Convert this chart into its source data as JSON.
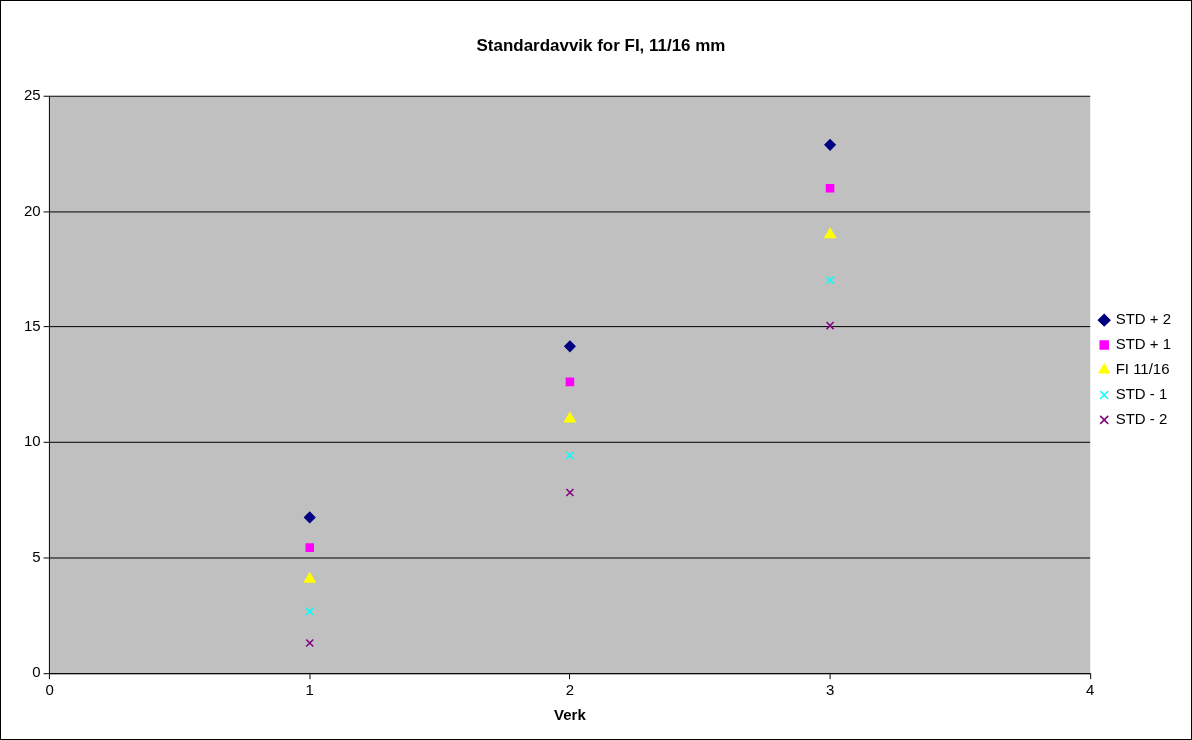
{
  "chart_data": {
    "type": "scatter",
    "title": "Standardavvik for FI, 11/16 mm",
    "xlabel": "Verk",
    "x": [
      1,
      2,
      3
    ],
    "series": [
      {
        "name": "STD + 2",
        "color": "#000080",
        "marker": "diamond",
        "values": [
          6.75,
          14.16,
          22.89
        ]
      },
      {
        "name": "STD + 1",
        "color": "#ff00ff",
        "marker": "square",
        "values": [
          5.44,
          12.62,
          21.01
        ]
      },
      {
        "name": "FI 11/16",
        "color": "#ffff00",
        "marker": "triangle",
        "values": [
          4.08,
          11.02,
          19.0
        ]
      },
      {
        "name": "STD - 1",
        "color": "#00ffff",
        "marker": "cross",
        "values": [
          2.67,
          9.43,
          17.03
        ]
      },
      {
        "name": "STD - 2",
        "color": "#800080",
        "marker": "cross",
        "values": [
          1.31,
          7.83,
          15.06
        ]
      }
    ],
    "xlim": [
      0,
      4
    ],
    "xticks": [
      0,
      1,
      2,
      3,
      4
    ],
    "ylim": [
      0,
      25
    ],
    "yticks": [
      0,
      5,
      10,
      15,
      20,
      25
    ],
    "grid": "y",
    "legend": "right"
  }
}
